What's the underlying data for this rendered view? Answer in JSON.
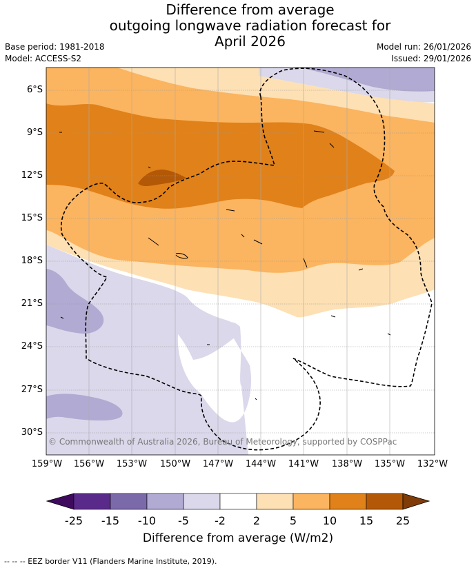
{
  "title": {
    "line1": "Difference from average",
    "line2": "outgoing longwave radiation forecast for",
    "line3": "April 2026"
  },
  "meta": {
    "base_period": "Base period: 1981-2018",
    "model": "Model: ACCESS-S2",
    "model_run": "Model run: 26/01/2026",
    "issued": "Issued: 29/01/2026"
  },
  "map": {
    "latitude_labels": [
      "6°S",
      "9°S",
      "12°S",
      "15°S",
      "18°S",
      "21°S",
      "24°S",
      "27°S",
      "30°S"
    ],
    "longitude_labels": [
      "159°W",
      "156°W",
      "153°W",
      "150°W",
      "147°W",
      "144°W",
      "141°W",
      "138°W",
      "135°W",
      "132°W"
    ],
    "copyright": "© Commonwealth of Australia 2026, Bureau of Meteorology, supported by COSPPac",
    "colors": {
      "neg25": "#3f0a5e",
      "neg20": "#5a2a8a",
      "neg15": "#7a6aaa",
      "neg10": "#b1aad2",
      "neg5": "#dad8ea",
      "neutral": "#ffffff",
      "pos2": "#fde0b4",
      "pos5": "#fbb45f",
      "pos10": "#e0811a",
      "pos15": "#b35806",
      "pos25": "#7f3b08"
    }
  },
  "colorbar": {
    "ticks": [
      "-25",
      "-15",
      "-10",
      "-5",
      "-2",
      "2",
      "5",
      "10",
      "15",
      "25"
    ],
    "label": "Difference from average (W/m2)"
  },
  "footer": "--  --  -- EEZ border V11 (Flanders Marine Institute, 2019)."
}
